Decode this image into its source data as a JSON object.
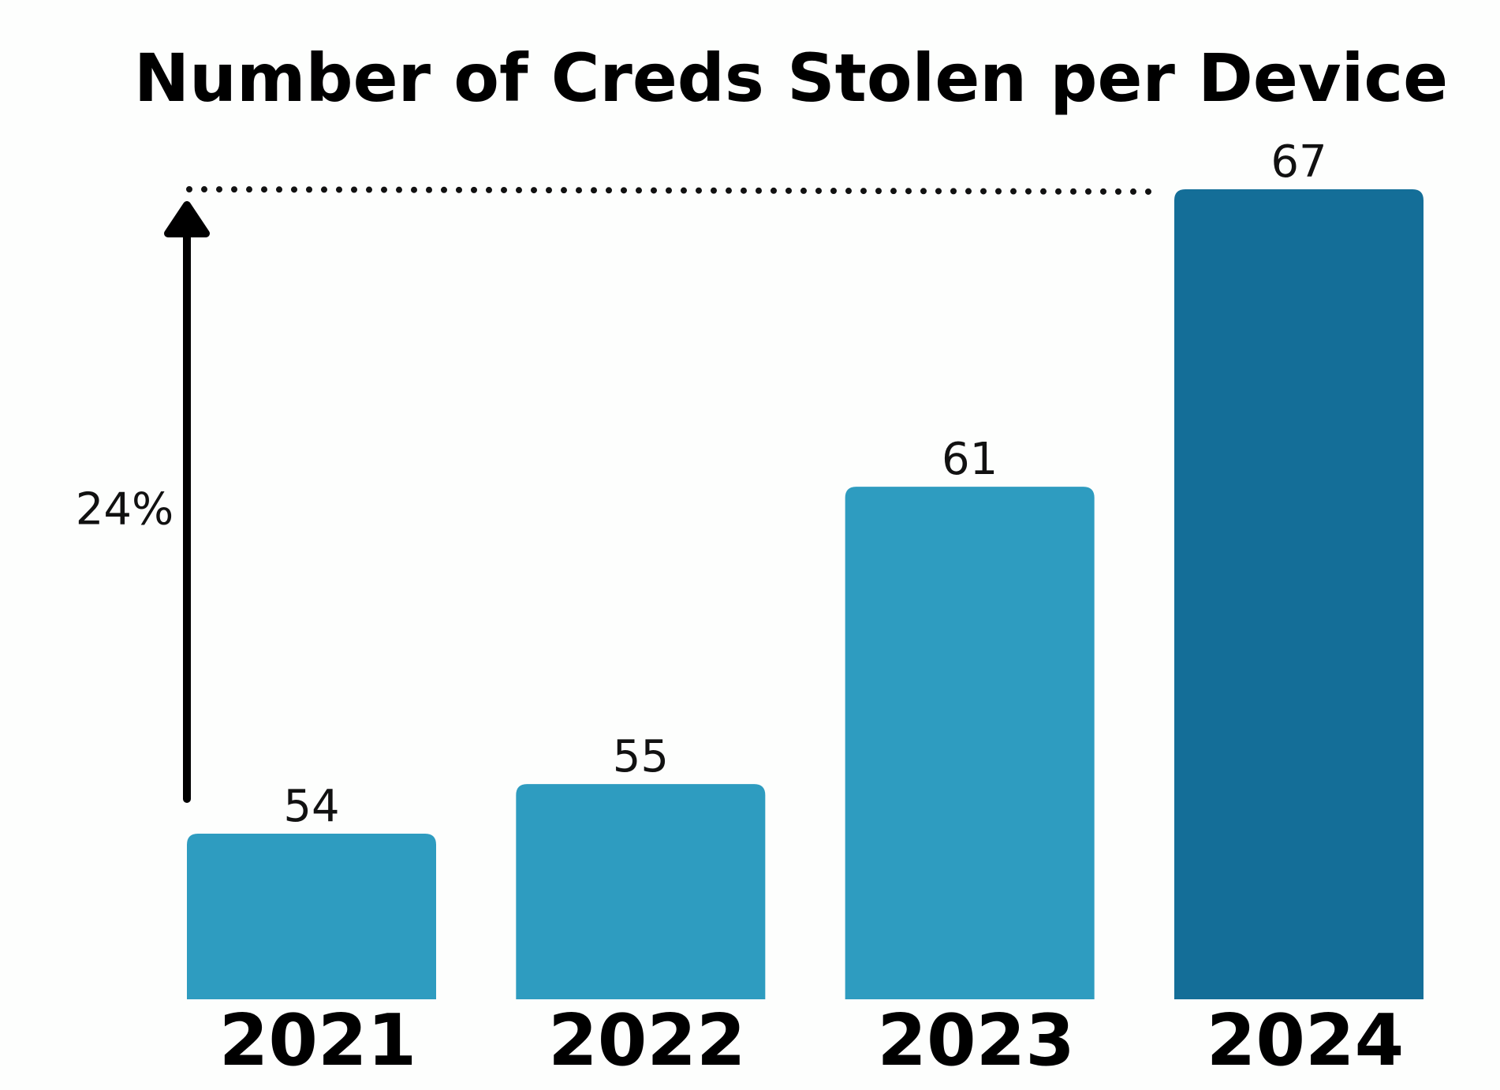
{
  "chart_data": {
    "type": "bar",
    "title": "Number of Creds Stolen per Device",
    "categories": [
      "2021",
      "2022",
      "2023",
      "2024"
    ],
    "values": [
      54,
      55,
      61,
      67
    ],
    "colors": [
      "#2e9cc0",
      "#2e9cc0",
      "#2e9cc0",
      "#146e98"
    ],
    "highlight_category": "2024",
    "grid": false,
    "annotation": {
      "label": "24%",
      "from_value": 54,
      "to_value": 67,
      "style": "upward arrow with dotted reference line to the top bar"
    }
  }
}
